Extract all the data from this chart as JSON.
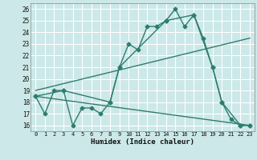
{
  "xlabel": "Humidex (Indice chaleur)",
  "xlim": [
    -0.5,
    23.5
  ],
  "ylim": [
    15.5,
    26.5
  ],
  "yticks": [
    16,
    17,
    18,
    19,
    20,
    21,
    22,
    23,
    24,
    25,
    26
  ],
  "xticks": [
    0,
    1,
    2,
    3,
    4,
    5,
    6,
    7,
    8,
    9,
    10,
    11,
    12,
    13,
    14,
    15,
    16,
    17,
    18,
    19,
    20,
    21,
    22,
    23
  ],
  "bg_color": "#cce8e8",
  "grid_color": "#ffffff",
  "line_color": "#2e7d6e",
  "lines": [
    {
      "x": [
        0,
        1,
        2,
        3,
        4,
        5,
        6,
        7,
        8,
        9,
        10,
        11,
        12,
        13,
        14,
        15,
        16,
        17,
        18,
        19,
        20,
        21,
        22,
        23
      ],
      "y": [
        18.5,
        17.0,
        19.0,
        19.0,
        16.0,
        17.5,
        17.5,
        17.0,
        18.0,
        21.0,
        23.0,
        22.5,
        24.5,
        24.5,
        25.0,
        26.0,
        24.5,
        25.5,
        23.5,
        21.0,
        18.0,
        16.5,
        16.0,
        16.0
      ],
      "marker": "D",
      "markersize": 2.5,
      "linewidth": 1.0
    },
    {
      "x": [
        0,
        3,
        8,
        9,
        14,
        17,
        19,
        20,
        22,
        23
      ],
      "y": [
        18.5,
        19.0,
        18.0,
        21.0,
        25.0,
        25.5,
        21.0,
        18.0,
        16.0,
        16.0
      ],
      "marker": "D",
      "markersize": 2.5,
      "linewidth": 1.0
    },
    {
      "x": [
        0,
        23
      ],
      "y": [
        19.0,
        23.5
      ],
      "marker": null,
      "markersize": 0,
      "linewidth": 1.0
    },
    {
      "x": [
        0,
        23
      ],
      "y": [
        18.5,
        16.0
      ],
      "marker": null,
      "markersize": 0,
      "linewidth": 1.0
    }
  ]
}
